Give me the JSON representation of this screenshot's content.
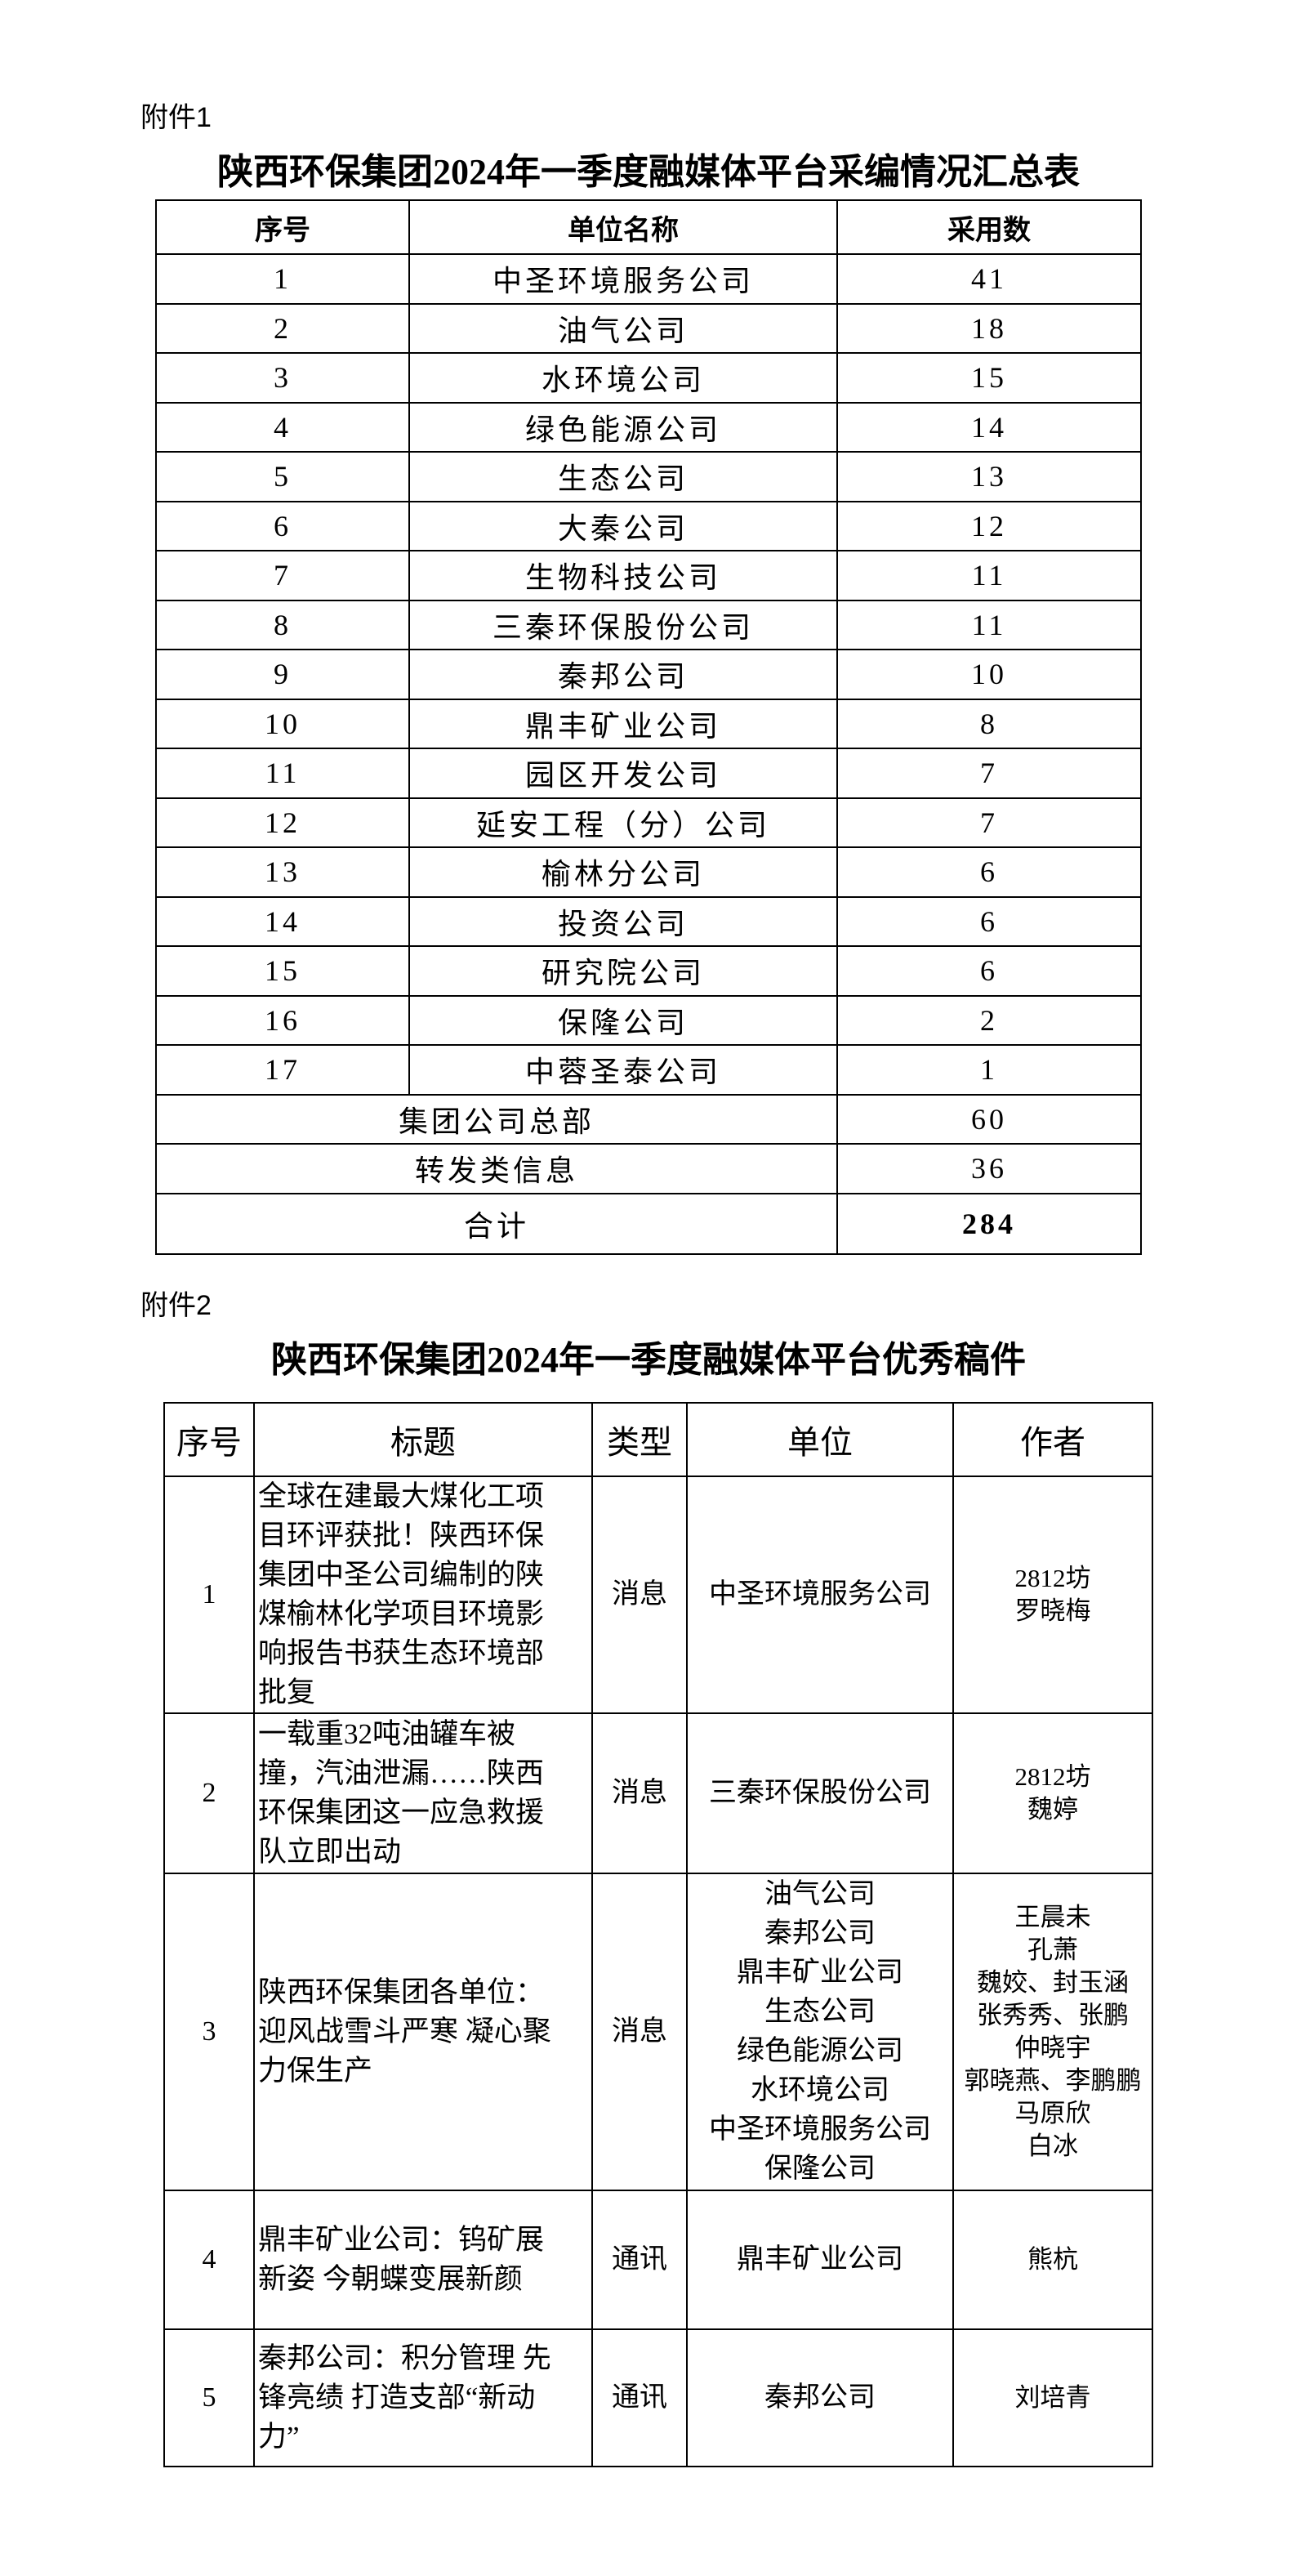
{
  "attachment1": {
    "label": "附件1",
    "title": "陕西环保集团2024年一季度融媒体平台采编情况汇总表",
    "headers": [
      "序号",
      "单位名称",
      "采用数"
    ],
    "rows": [
      {
        "no": "1",
        "unit": "中圣环境服务公司",
        "count": "41"
      },
      {
        "no": "2",
        "unit": "油气公司",
        "count": "18"
      },
      {
        "no": "3",
        "unit": "水环境公司",
        "count": "15"
      },
      {
        "no": "4",
        "unit": "绿色能源公司",
        "count": "14"
      },
      {
        "no": "5",
        "unit": "生态公司",
        "count": "13"
      },
      {
        "no": "6",
        "unit": "大秦公司",
        "count": "12"
      },
      {
        "no": "7",
        "unit": "生物科技公司",
        "count": "11"
      },
      {
        "no": "8",
        "unit": "三秦环保股份公司",
        "count": "11"
      },
      {
        "no": "9",
        "unit": "秦邦公司",
        "count": "10"
      },
      {
        "no": "10",
        "unit": "鼎丰矿业公司",
        "count": "8"
      },
      {
        "no": "11",
        "unit": "园区开发公司",
        "count": "7"
      },
      {
        "no": "12",
        "unit": "延安工程（分）公司",
        "count": "7"
      },
      {
        "no": "13",
        "unit": "榆林分公司",
        "count": "6"
      },
      {
        "no": "14",
        "unit": "投资公司",
        "count": "6"
      },
      {
        "no": "15",
        "unit": "研究院公司",
        "count": "6"
      },
      {
        "no": "16",
        "unit": "保隆公司",
        "count": "2"
      },
      {
        "no": "17",
        "unit": "中蓉圣泰公司",
        "count": "1"
      }
    ],
    "extra_rows": [
      {
        "unit": "集团公司总部",
        "count": "60"
      },
      {
        "unit": "转发类信息",
        "count": "36"
      }
    ],
    "total": {
      "label": "合计",
      "count": "284"
    }
  },
  "attachment2": {
    "label": "附件2",
    "title": "陕西环保集团2024年一季度融媒体平台优秀稿件",
    "headers": [
      "序号",
      "标题",
      "类型",
      "单位",
      "作者"
    ],
    "rows": [
      {
        "no": "1",
        "title_lines": [
          "全球在建最大煤化工项",
          "目环评获批！陕西环保",
          "集团中圣公司编制的陕",
          "煤榆林化学项目环境影",
          "响报告书获生态环境部",
          "批复"
        ],
        "type": "消息",
        "units": [
          "中圣环境服务公司"
        ],
        "authors": [
          "2812坊",
          "罗晓梅"
        ]
      },
      {
        "no": "2",
        "title_lines": [
          "一载重32吨油罐车被",
          "撞，汽油泄漏……陕西",
          "环保集团这一应急救援",
          "队立即出动"
        ],
        "type": "消息",
        "units": [
          "三秦环保股份公司"
        ],
        "authors": [
          "2812坊",
          "魏婷"
        ]
      },
      {
        "no": "3",
        "title_lines": [
          "陕西环保集团各单位：",
          "迎风战雪斗严寒 凝心聚",
          "力保生产"
        ],
        "type": "消息",
        "units": [
          "油气公司",
          "秦邦公司",
          "鼎丰矿业公司",
          "生态公司",
          "绿色能源公司",
          "水环境公司",
          "中圣环境服务公司",
          "保隆公司"
        ],
        "authors": [
          "王晨未",
          "孔萧",
          "魏姣、封玉涵",
          "张秀秀、张鹏",
          "仲晓宇",
          "郭晓燕、李鹏鹏",
          "马原欣",
          "白冰"
        ]
      },
      {
        "no": "4",
        "title_lines": [
          "鼎丰矿业公司：钨矿展",
          "新姿 今朝蝶变展新颜"
        ],
        "type": "通讯",
        "units": [
          "鼎丰矿业公司"
        ],
        "authors": [
          "熊杭"
        ]
      },
      {
        "no": "5",
        "title_lines": [
          "秦邦公司：积分管理 先",
          "锋亮绩 打造支部“新动",
          "力”"
        ],
        "type": "通讯",
        "units": [
          "秦邦公司"
        ],
        "authors": [
          "刘培青"
        ]
      }
    ]
  }
}
